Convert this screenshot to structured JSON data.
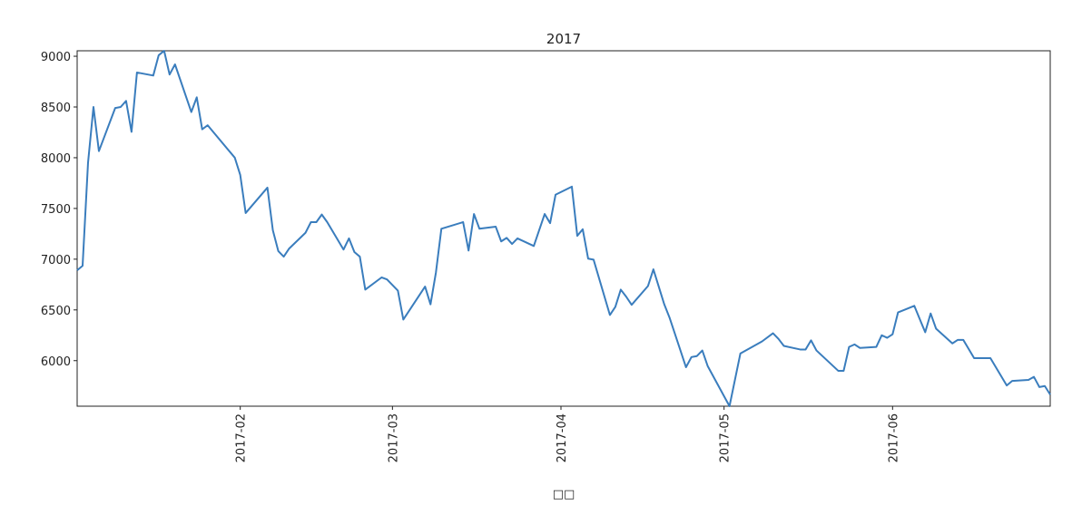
{
  "chart_data": {
    "type": "line",
    "title": "2017",
    "x_label": "□□",
    "x": [
      1,
      2,
      3,
      4,
      5,
      8,
      9,
      10,
      11,
      12,
      15,
      16,
      17,
      18,
      19,
      22,
      23,
      24,
      25,
      30,
      31,
      32,
      36,
      37,
      38,
      39,
      40,
      43,
      44,
      45,
      46,
      47,
      50,
      51,
      52,
      53,
      54,
      57,
      58,
      60,
      61,
      65,
      66,
      67,
      68,
      72,
      73,
      74,
      75,
      78,
      79,
      80,
      81,
      82,
      85,
      87,
      88,
      89,
      92,
      93,
      94,
      95,
      96,
      99,
      100,
      101,
      102,
      103,
      106,
      107,
      109,
      110,
      113,
      114,
      115,
      116,
      117,
      121,
      123,
      127,
      129,
      130,
      131,
      134,
      135,
      136,
      137,
      141,
      142,
      143,
      144,
      145,
      148,
      149,
      150,
      151,
      152,
      155,
      157,
      158,
      159,
      162,
      163,
      164,
      166,
      169,
      172,
      173,
      176,
      177,
      178,
      179,
      180
    ],
    "series": [
      {
        "color": "#3a7dbd",
        "values": [
          6890,
          6935,
          7950,
          8500,
          8065,
          8490,
          8500,
          8560,
          8255,
          8840,
          8810,
          9010,
          9054,
          8820,
          8920,
          8450,
          8595,
          8280,
          8320,
          8000,
          7830,
          7455,
          7705,
          7285,
          7080,
          7025,
          7105,
          7260,
          7365,
          7365,
          7440,
          7365,
          7095,
          7205,
          7070,
          7025,
          6700,
          6820,
          6800,
          6690,
          6405,
          6730,
          6555,
          6870,
          7300,
          7365,
          7085,
          7445,
          7300,
          7320,
          7175,
          7210,
          7150,
          7205,
          7130,
          7445,
          7355,
          7635,
          7715,
          7230,
          7295,
          7005,
          6995,
          6450,
          6530,
          6700,
          6630,
          6550,
          6735,
          6900,
          6555,
          6420,
          5935,
          6035,
          6045,
          6100,
          5945,
          5551,
          6070,
          6190,
          6270,
          6215,
          6145,
          6110,
          6110,
          6200,
          6100,
          5900,
          5900,
          6135,
          6160,
          6125,
          6135,
          6250,
          6225,
          6260,
          6475,
          6540,
          6280,
          6465,
          6315,
          6170,
          6205,
          6205,
          6025,
          6025,
          5755,
          5800,
          5810,
          5840,
          5740,
          5750,
          5665
        ]
      }
    ],
    "xlim": [
      1,
      180
    ],
    "ylim": [
      5551,
      9054
    ],
    "xticks": [
      {
        "value": 31,
        "label": "2017-02"
      },
      {
        "value": 59,
        "label": "2017-03"
      },
      {
        "value": 90,
        "label": "2017-04"
      },
      {
        "value": 120,
        "label": "2017-05"
      },
      {
        "value": 151,
        "label": "2017-06"
      }
    ],
    "yticks": [
      6000,
      6500,
      7000,
      7500,
      8000,
      8500,
      9000
    ],
    "grid": false
  }
}
